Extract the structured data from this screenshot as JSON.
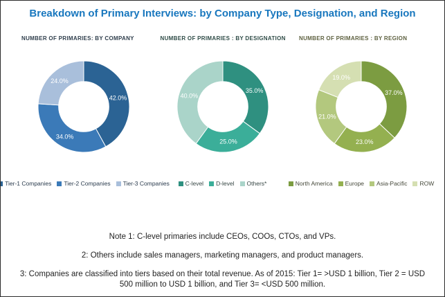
{
  "title": "Breakdown of Primary Interviews: by Company Type, Designation, and Region",
  "theme": {
    "title_color": "#1877BE",
    "background": "#FFFFFF",
    "border_color": "#2B2B2B",
    "note_text_color": "#1F1F1F",
    "slice_label_color": "#FFFFFF",
    "slice_border_color": "#FFFFFF"
  },
  "chart_data": [
    {
      "type": "pie",
      "subtype": "donut",
      "title": "NUMBER OF PRIMARIES: BY COMPANY",
      "title_color": "#2F3E4C",
      "categories": [
        "Tier-1 Companies",
        "Tier-2 Companies",
        "Tier-3 Companies"
      ],
      "values": [
        42.0,
        34.0,
        24.0
      ],
      "data_labels": [
        "42.0%",
        "34.0%",
        "24.0%"
      ],
      "colors": [
        "#2B6394",
        "#3B7AB8",
        "#A9BFDB"
      ],
      "legend_position": "bottom",
      "legend_text_color": "#2A3B4D",
      "start_angle_deg": 0,
      "direction": "clockwise",
      "inner_radius_pct": 55
    },
    {
      "type": "pie",
      "subtype": "donut",
      "title": "NUMBER OF PRIMARIES : BY DESIGNATION",
      "title_color": "#2F4C47",
      "categories": [
        "C-level",
        "D-level",
        "Others*"
      ],
      "values": [
        35.0,
        25.0,
        40.0
      ],
      "data_labels": [
        "35.0%",
        "25.0%",
        "40.0%"
      ],
      "colors": [
        "#2F9080",
        "#3BAE99",
        "#AAD4C9"
      ],
      "legend_position": "bottom",
      "legend_text_color": "#374745",
      "start_angle_deg": 0,
      "direction": "clockwise",
      "inner_radius_pct": 55
    },
    {
      "type": "pie",
      "subtype": "donut",
      "title": "NUMBER OF PRIMARIES : BY REGION",
      "title_color": "#5E6140",
      "categories": [
        "North America",
        "Europe",
        "Asia-Pacific",
        "ROW"
      ],
      "values": [
        37.0,
        23.0,
        21.0,
        19.0
      ],
      "data_labels": [
        "37.0%",
        "23.0%",
        "21.0%",
        "19.0%"
      ],
      "colors": [
        "#7C9C41",
        "#94B050",
        "#B3C87E",
        "#D5DFB2"
      ],
      "legend_position": "bottom",
      "legend_text_color": "#45483A",
      "start_angle_deg": 0,
      "direction": "clockwise",
      "inner_radius_pct": 55
    }
  ],
  "notes": [
    "Note 1: C-level primaries include CEOs, COOs, CTOs, and VPs.",
    "2: Others include sales managers, marketing managers, and product managers.",
    "3: Companies are classified into tiers based on their total revenue. As of 2015: Tier 1= >USD 1 billion, Tier 2 = USD 500 million to USD 1 billion, and Tier 3= <USD 500 million."
  ]
}
